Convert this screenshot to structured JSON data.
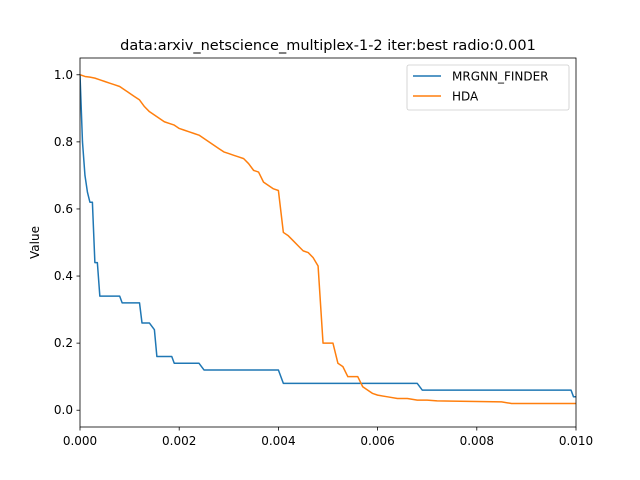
{
  "chart_data": {
    "type": "line",
    "title": "data:arxiv_netscience_multiplex-1-2 iter:best radio:0.001",
    "xlabel": "",
    "ylabel": "Value",
    "xlim": [
      0,
      0.01
    ],
    "ylim": [
      -0.05,
      1.05
    ],
    "xticks": [
      0,
      0.002,
      0.004,
      0.006,
      0.008,
      0.01
    ],
    "xtick_labels": [
      "0.000",
      "0.002",
      "0.004",
      "0.006",
      "0.008",
      "0.010"
    ],
    "yticks": [
      0,
      0.2,
      0.4,
      0.6,
      0.8,
      1.0
    ],
    "ytick_labels": [
      "0.0",
      "0.2",
      "0.4",
      "0.6",
      "0.8",
      "1.0"
    ],
    "grid": false,
    "legend_position": "top-right",
    "series": [
      {
        "name": "MRGNN_FINDER",
        "color": "#1f77b4",
        "points": [
          [
            0,
            1.0
          ],
          [
            5e-05,
            0.8
          ],
          [
            0.0001,
            0.7
          ],
          [
            0.00015,
            0.65
          ],
          [
            0.0002,
            0.62
          ],
          [
            0.00025,
            0.62
          ],
          [
            0.0003,
            0.44
          ],
          [
            0.00035,
            0.44
          ],
          [
            0.0004,
            0.34
          ],
          [
            0.0008,
            0.34
          ],
          [
            0.00085,
            0.32
          ],
          [
            0.0012,
            0.32
          ],
          [
            0.00125,
            0.26
          ],
          [
            0.0014,
            0.26
          ],
          [
            0.0015,
            0.24
          ],
          [
            0.00155,
            0.16
          ],
          [
            0.00185,
            0.16
          ],
          [
            0.0019,
            0.14
          ],
          [
            0.0024,
            0.14
          ],
          [
            0.0025,
            0.12
          ],
          [
            0.004,
            0.12
          ],
          [
            0.0041,
            0.08
          ],
          [
            0.0068,
            0.08
          ],
          [
            0.0069,
            0.06
          ],
          [
            0.0099,
            0.06
          ],
          [
            0.00995,
            0.04
          ],
          [
            0.01,
            0.04
          ]
        ]
      },
      {
        "name": "HDA",
        "color": "#ff7f0e",
        "points": [
          [
            0,
            1.0
          ],
          [
            0.0001,
            0.995
          ],
          [
            0.0002,
            0.993
          ],
          [
            0.0003,
            0.99
          ],
          [
            0.0004,
            0.985
          ],
          [
            0.0005,
            0.98
          ],
          [
            0.0006,
            0.975
          ],
          [
            0.0007,
            0.97
          ],
          [
            0.0008,
            0.965
          ],
          [
            0.0009,
            0.955
          ],
          [
            0.001,
            0.945
          ],
          [
            0.0011,
            0.935
          ],
          [
            0.0012,
            0.925
          ],
          [
            0.0013,
            0.905
          ],
          [
            0.0014,
            0.89
          ],
          [
            0.0015,
            0.88
          ],
          [
            0.0016,
            0.87
          ],
          [
            0.0017,
            0.86
          ],
          [
            0.0018,
            0.855
          ],
          [
            0.0019,
            0.85
          ],
          [
            0.002,
            0.84
          ],
          [
            0.0021,
            0.835
          ],
          [
            0.0022,
            0.83
          ],
          [
            0.0023,
            0.825
          ],
          [
            0.0024,
            0.82
          ],
          [
            0.0025,
            0.81
          ],
          [
            0.0026,
            0.8
          ],
          [
            0.0027,
            0.79
          ],
          [
            0.0028,
            0.78
          ],
          [
            0.0029,
            0.77
          ],
          [
            0.003,
            0.765
          ],
          [
            0.0031,
            0.76
          ],
          [
            0.0032,
            0.755
          ],
          [
            0.0033,
            0.75
          ],
          [
            0.0034,
            0.735
          ],
          [
            0.0035,
            0.715
          ],
          [
            0.0036,
            0.71
          ],
          [
            0.0037,
            0.68
          ],
          [
            0.0038,
            0.67
          ],
          [
            0.0039,
            0.66
          ],
          [
            0.004,
            0.655
          ],
          [
            0.0041,
            0.53
          ],
          [
            0.0042,
            0.52
          ],
          [
            0.0043,
            0.505
          ],
          [
            0.0044,
            0.49
          ],
          [
            0.0045,
            0.475
          ],
          [
            0.0046,
            0.47
          ],
          [
            0.0047,
            0.455
          ],
          [
            0.0048,
            0.43
          ],
          [
            0.0049,
            0.2
          ],
          [
            0.005,
            0.2
          ],
          [
            0.0051,
            0.2
          ],
          [
            0.0052,
            0.14
          ],
          [
            0.0053,
            0.13
          ],
          [
            0.0054,
            0.1
          ],
          [
            0.0055,
            0.1
          ],
          [
            0.0056,
            0.1
          ],
          [
            0.0057,
            0.07
          ],
          [
            0.0058,
            0.06
          ],
          [
            0.0059,
            0.05
          ],
          [
            0.006,
            0.045
          ],
          [
            0.0062,
            0.04
          ],
          [
            0.0064,
            0.035
          ],
          [
            0.0066,
            0.035
          ],
          [
            0.0068,
            0.03
          ],
          [
            0.007,
            0.03
          ],
          [
            0.0072,
            0.028
          ],
          [
            0.0075,
            0.027
          ],
          [
            0.008,
            0.026
          ],
          [
            0.0085,
            0.025
          ],
          [
            0.0087,
            0.02
          ],
          [
            0.009,
            0.02
          ],
          [
            0.0095,
            0.02
          ],
          [
            0.01,
            0.02
          ]
        ]
      }
    ]
  }
}
